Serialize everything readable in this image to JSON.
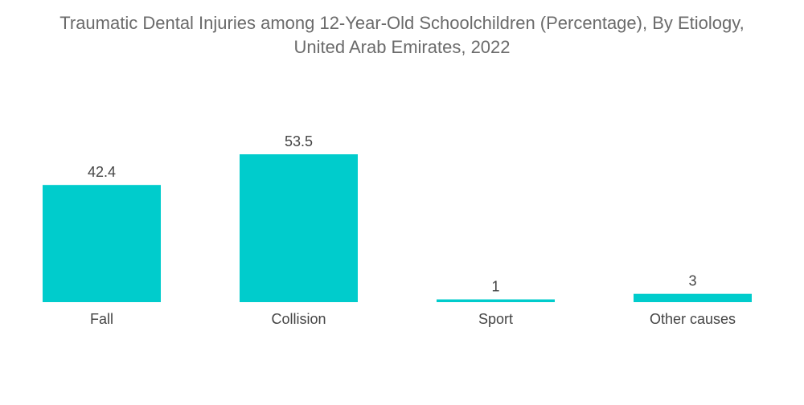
{
  "title_line1": "Traumatic Dental Injuries among 12-Year-Old Schoolchildren (Percentage), By Etiology,",
  "title_line2": "United Arab Emirates, 2022",
  "chart_data": {
    "type": "bar",
    "title": "Traumatic Dental Injuries among 12-Year-Old Schoolchildren (Percentage), By Etiology, United Arab Emirates, 2022",
    "xlabel": "",
    "ylabel": "",
    "categories": [
      "Fall",
      "Collision",
      "Sport",
      "Other causes"
    ],
    "values": [
      42.4,
      53.5,
      1,
      3
    ],
    "value_labels": [
      "42.4",
      "53.5",
      "1",
      "3"
    ],
    "ylim": [
      0,
      53.5
    ],
    "grid": false,
    "legend": "none",
    "bar_color": "#00cccc"
  }
}
